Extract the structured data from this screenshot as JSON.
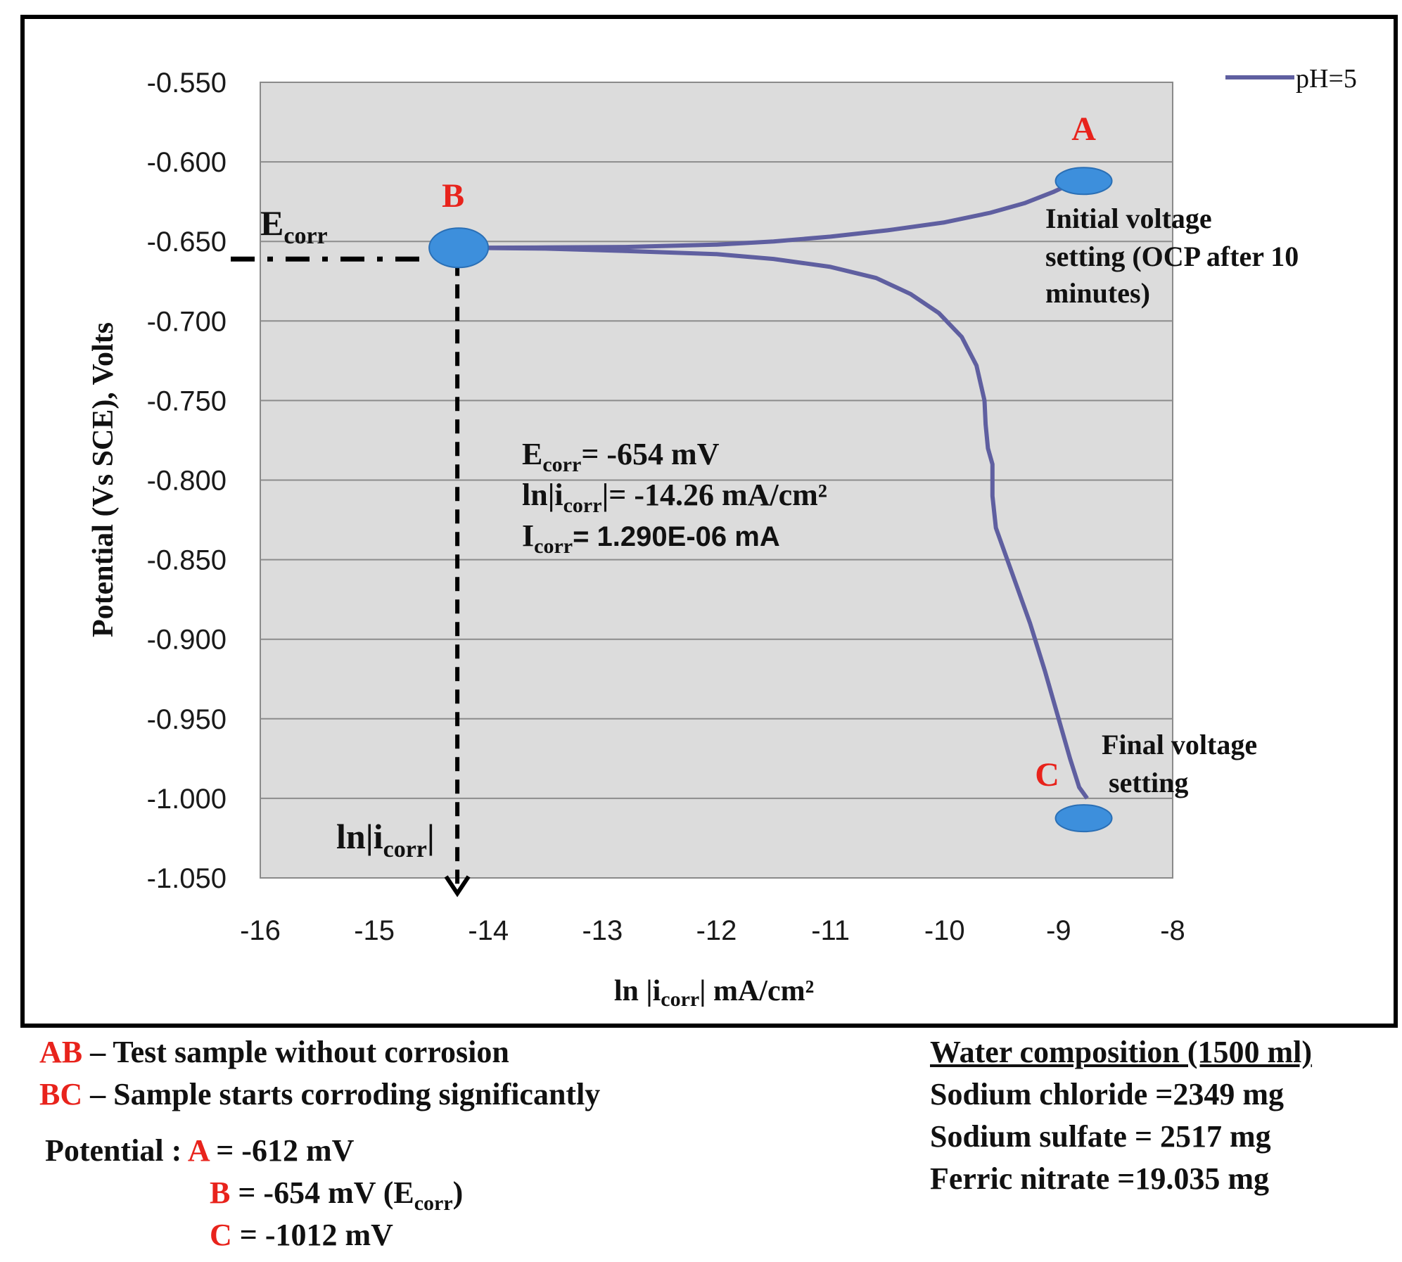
{
  "chart_data": {
    "type": "line",
    "xlabel_main": "ln |i",
    "xlabel_sub": "corr",
    "xlabel_rest": "| mA/cm²",
    "ylabel": "Potential (Vs SCE), Volts",
    "xlim": [
      -16,
      -8
    ],
    "ylim": [
      -1.05,
      -0.55
    ],
    "x_ticks": [
      "-16",
      "-15",
      "-14",
      "-13",
      "-12",
      "-11",
      "-10",
      "-9",
      "-8"
    ],
    "y_ticks": [
      "-0.550",
      "-0.600",
      "-0.650",
      "-0.700",
      "-0.750",
      "-0.800",
      "-0.850",
      "-0.900",
      "-0.950",
      "-1.000",
      "-1.050"
    ],
    "y_tick_values": [
      -0.55,
      -0.6,
      -0.65,
      -0.7,
      -0.75,
      -0.8,
      -0.85,
      -0.9,
      -0.95,
      -1.0,
      -1.05
    ],
    "x_tick_values": [
      -16,
      -15,
      -14,
      -13,
      -12,
      -11,
      -10,
      -9,
      -8
    ],
    "grid": "horizontal",
    "legend": {
      "entries": [
        "pH=5"
      ],
      "placement": "top-right"
    },
    "series": [
      {
        "name": "pH=5",
        "color": "#5f5fa0",
        "points": [
          [
            -14.26,
            -0.654
          ],
          [
            -13.5,
            -0.6538
          ],
          [
            -12.8,
            -0.6535
          ],
          [
            -12.0,
            -0.652
          ],
          [
            -11.5,
            -0.65
          ],
          [
            -11.0,
            -0.647
          ],
          [
            -10.5,
            -0.643
          ],
          [
            -10.0,
            -0.638
          ],
          [
            -9.6,
            -0.632
          ],
          [
            -9.3,
            -0.626
          ],
          [
            -9.05,
            -0.619
          ],
          [
            -8.9,
            -0.614
          ]
        ]
      },
      {
        "name": "",
        "color": "#5f5fa0",
        "points": [
          [
            -14.26,
            -0.654
          ],
          [
            -13.5,
            -0.6545
          ],
          [
            -12.8,
            -0.656
          ],
          [
            -12.0,
            -0.658
          ],
          [
            -11.5,
            -0.661
          ],
          [
            -11.0,
            -0.666
          ],
          [
            -10.6,
            -0.673
          ],
          [
            -10.3,
            -0.683
          ],
          [
            -10.05,
            -0.695
          ],
          [
            -9.85,
            -0.71
          ],
          [
            -9.72,
            -0.728
          ],
          [
            -9.65,
            -0.75
          ],
          [
            -9.64,
            -0.765
          ],
          [
            -9.62,
            -0.78
          ],
          [
            -9.58,
            -0.79
          ],
          [
            -9.58,
            -0.81
          ],
          [
            -9.55,
            -0.83
          ],
          [
            -9.4,
            -0.86
          ],
          [
            -9.25,
            -0.89
          ],
          [
            -9.12,
            -0.92
          ],
          [
            -9.0,
            -0.95
          ],
          [
            -8.9,
            -0.975
          ],
          [
            -8.82,
            -0.993
          ],
          [
            -8.75,
            -1.0
          ]
        ]
      }
    ],
    "points": [
      {
        "label": "A",
        "x": -8.78,
        "y": -0.612
      },
      {
        "label": "B",
        "x": -14.26,
        "y": -0.654
      },
      {
        "label": "C",
        "x": -8.78,
        "y": -1.0125
      }
    ],
    "ecorr_y": -0.654,
    "icorr_x": -14.26,
    "annotations": {
      "ecorr_left_main": "E",
      "ecorr_left_sub": "corr",
      "icorr_label_main": "ln|i",
      "icorr_label_sub": "corr",
      "icorr_label_end": "|",
      "initial_line1": "Initial voltage",
      "initial_line2": "setting (OCP after 10",
      "initial_line3": "minutes)",
      "final_line1": "Final voltage",
      "final_line2": "setting",
      "info_e_main": "E",
      "info_e_sub": "corr",
      "info_e_val": "= -654 mV",
      "info_ln_main": "ln|i",
      "info_ln_sub": "corr",
      "info_ln_val": "|= -14.26 mA/cm²",
      "info_i_main": "I",
      "info_i_sub": "corr",
      "info_i_val": "=  1.290E-06 mA"
    }
  },
  "notes": {
    "ab_key": "AB",
    "ab_text": " – Test sample without corrosion",
    "bc_key": "BC",
    "bc_text": " – Sample starts corroding significantly",
    "potential_label": "Potential : ",
    "a_key": "A",
    "a_val": " = -612 mV",
    "b_key": "B",
    "b_val": " = -654 mV (E",
    "b_sub": "corr",
    "b_end": ")",
    "c_key": "C",
    "c_val": " = -1012 mV"
  },
  "water": {
    "title": "Water composition (1500 ml)",
    "items": [
      "Sodium chloride =2349 mg",
      "Sodium sulfate = 2517 mg",
      "Ferric nitrate =19.035 mg"
    ]
  }
}
